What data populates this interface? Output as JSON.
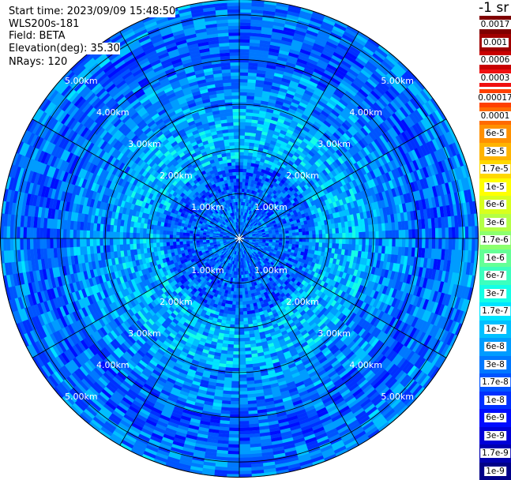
{
  "info": {
    "start_time": "Start time: 2023/09/09 15:48:50",
    "instrument": "WLS200s-181",
    "field": "Field: BETA",
    "elevation": "Elevation(deg): 35.30",
    "nrays": "NRays: 120"
  },
  "colorbar": {
    "title": "-1 sr",
    "top_labels": [
      "0.0017",
      "0.001",
      "0.0006",
      "0.0003"
    ],
    "top_colors": [
      "#7f0000",
      "#a00000",
      "#c80000",
      "#f01010"
    ],
    "labels": [
      "0.00017",
      "0.0001",
      "6e-5",
      "3e-5",
      "1.7e-5",
      "1e-5",
      "6e-6",
      "3e-6",
      "1.7e-6",
      "1e-6",
      "6e-7",
      "3e-7",
      "1.7e-7",
      "1e-7",
      "6e-8",
      "3e-8",
      "1.7e-8",
      "1e-8",
      "6e-9",
      "3e-9",
      "1.7e-9",
      "1e-9"
    ],
    "colors": [
      "#ff4000",
      "#ff6a00",
      "#ff9000",
      "#ffb400",
      "#ffd800",
      "#ffff00",
      "#d8ff1e",
      "#b4ff46",
      "#8cff6e",
      "#64ff96",
      "#3cffbe",
      "#14ffe6",
      "#00e4ff",
      "#00c0ff",
      "#009cff",
      "#0078ff",
      "#0054ff",
      "#0030ff",
      "#000cff",
      "#0000d8",
      "#0000b0",
      "#000088"
    ]
  },
  "chart_data": {
    "type": "heatmap",
    "projection": "polar (PPI)",
    "title": "",
    "field": "BETA",
    "units": "-1 sr",
    "rings_km": [
      1,
      2,
      3,
      4,
      5
    ],
    "ring_labels": [
      "1.00km",
      "2.00km",
      "3.00km",
      "4.00km",
      "5.00km"
    ],
    "max_range_km": 5.35,
    "spoke_step_deg": 30,
    "nrays": 120,
    "dominant_range": [
      "1e-8",
      "6e-7"
    ],
    "grid": true
  }
}
